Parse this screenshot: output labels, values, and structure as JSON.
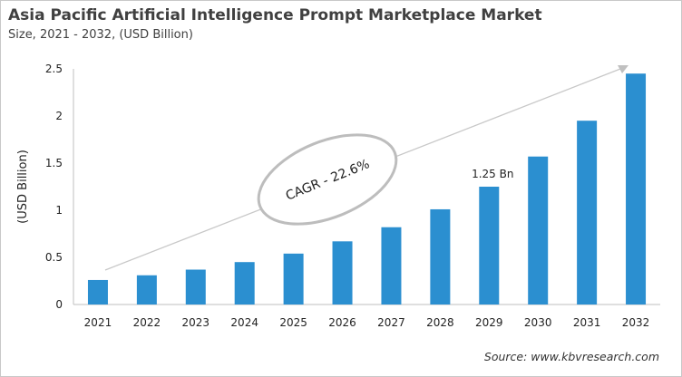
{
  "chart_data": {
    "type": "bar",
    "title": "Asia Pacific Artificial Intelligence Prompt Marketplace Market",
    "subtitle": "Size, 2021 - 2032, (USD Billion)",
    "ylabel": "(USD Billion)",
    "xlabel": "",
    "categories": [
      "2021",
      "2022",
      "2023",
      "2024",
      "2025",
      "2026",
      "2027",
      "2028",
      "2029",
      "2030",
      "2031",
      "2032"
    ],
    "values": [
      0.26,
      0.31,
      0.37,
      0.45,
      0.54,
      0.67,
      0.82,
      1.01,
      1.25,
      1.57,
      1.95,
      2.45
    ],
    "ylim": [
      0,
      2.5
    ],
    "yticks": [
      "0",
      "0.5",
      "1",
      "1.5",
      "2",
      "2.5"
    ],
    "grid": false,
    "bar_color": "#2b8fd0",
    "data_label": {
      "category": "2029",
      "text": "1.25 Bn"
    },
    "annotation": "CAGR - 22.6%",
    "source": "Source: www.kbvresearch.com"
  }
}
